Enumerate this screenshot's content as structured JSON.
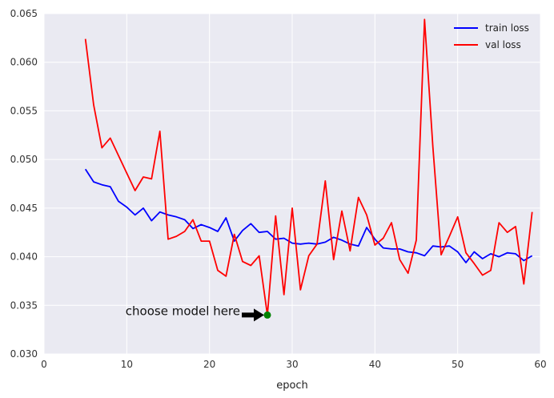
{
  "chart_data": {
    "type": "line",
    "title": "",
    "xlabel": "epoch",
    "ylabel": "",
    "xlim": [
      0,
      60
    ],
    "ylim": [
      0.03,
      0.065
    ],
    "xticks": [
      0,
      10,
      20,
      30,
      40,
      50,
      60
    ],
    "xtick_labels": [
      "0",
      "10",
      "20",
      "30",
      "40",
      "50",
      "60"
    ],
    "yticks": [
      0.03,
      0.035,
      0.04,
      0.045,
      0.05,
      0.055,
      0.06,
      0.065
    ],
    "ytick_labels": [
      "0.030",
      "0.035",
      "0.040",
      "0.045",
      "0.050",
      "0.055",
      "0.060",
      "0.065"
    ],
    "grid": true,
    "legend_position": "top-right",
    "x": [
      5,
      6,
      7,
      8,
      9,
      10,
      11,
      12,
      13,
      14,
      15,
      16,
      17,
      18,
      19,
      20,
      21,
      22,
      23,
      24,
      25,
      26,
      27,
      28,
      29,
      30,
      31,
      32,
      33,
      34,
      35,
      36,
      37,
      38,
      39,
      40,
      41,
      42,
      43,
      44,
      45,
      46,
      47,
      48,
      49,
      50,
      51,
      52,
      53,
      54,
      55,
      56,
      57,
      58,
      59
    ],
    "series": [
      {
        "name": "train loss",
        "color": "#0000ff",
        "values": [
          0.049,
          0.0477,
          0.0474,
          0.0472,
          0.0457,
          0.0451,
          0.0443,
          0.045,
          0.0437,
          0.0446,
          0.0443,
          0.0441,
          0.0438,
          0.0429,
          0.0433,
          0.043,
          0.0426,
          0.044,
          0.0416,
          0.0427,
          0.0434,
          0.0425,
          0.0426,
          0.0418,
          0.0419,
          0.0414,
          0.0413,
          0.0414,
          0.0413,
          0.0415,
          0.042,
          0.0417,
          0.0413,
          0.0411,
          0.043,
          0.0418,
          0.0409,
          0.0408,
          0.0408,
          0.0405,
          0.0404,
          0.0401,
          0.0411,
          0.041,
          0.0411,
          0.0405,
          0.0394,
          0.0405,
          0.0398,
          0.0403,
          0.04,
          0.0404,
          0.0403,
          0.0396,
          0.0401
        ]
      },
      {
        "name": "val loss",
        "color": "#ff0000",
        "values": [
          0.0624,
          0.0556,
          0.0512,
          0.0522,
          0.0504,
          0.0486,
          0.0468,
          0.0482,
          0.048,
          0.0529,
          0.0418,
          0.0421,
          0.0426,
          0.0438,
          0.0416,
          0.0416,
          0.0386,
          0.038,
          0.0423,
          0.0395,
          0.0391,
          0.0401,
          0.034,
          0.0442,
          0.0361,
          0.045,
          0.0366,
          0.0401,
          0.0413,
          0.0478,
          0.0397,
          0.0447,
          0.0406,
          0.0461,
          0.0443,
          0.0412,
          0.0419,
          0.0435,
          0.0397,
          0.0383,
          0.0417,
          0.0644,
          0.0513,
          0.0402,
          0.0421,
          0.0441,
          0.0404,
          0.0393,
          0.0381,
          0.0386,
          0.0435,
          0.0425,
          0.0431,
          0.0372,
          0.0446
        ]
      }
    ],
    "annotation": {
      "text": "choose model here",
      "point": [
        27,
        0.034
      ],
      "marker_color": "#008000",
      "arrow_color": "#000000"
    }
  }
}
